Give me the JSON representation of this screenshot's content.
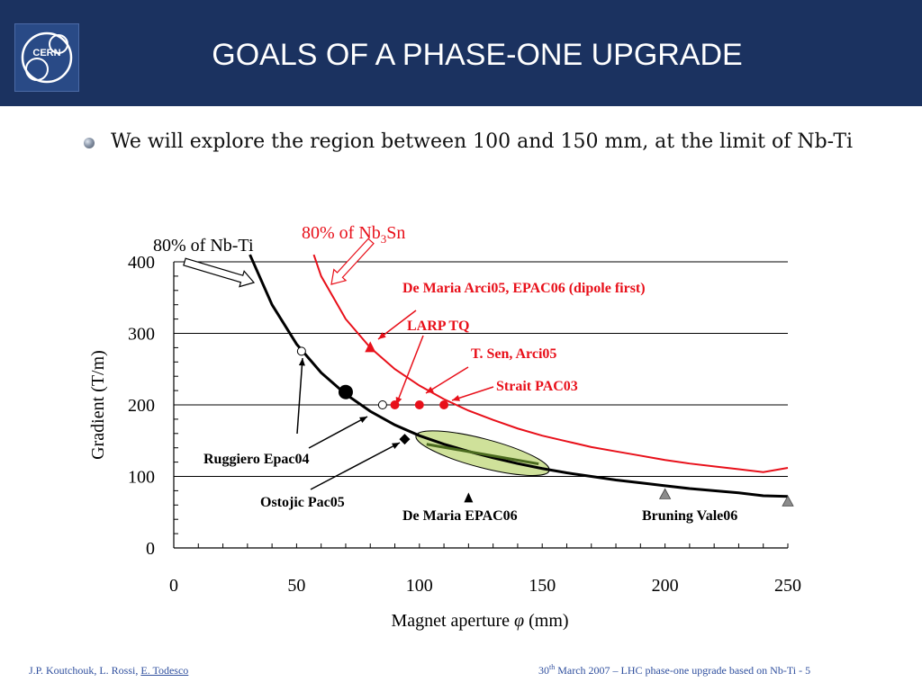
{
  "header": {
    "logo_text": "CERN",
    "title": "GOALS OF A PHASE-ONE UPGRADE"
  },
  "bullet": {
    "text": "We will explore the region between 100 and 150 mm, at the limit of Nb-Ti"
  },
  "chart_data": {
    "type": "line",
    "xlabel_prefix": "Magnet aperture ",
    "xlabel_symbol": "φ",
    "xlabel_suffix": " (mm)",
    "ylabel": "Gradient (T/m)",
    "xlim": [
      0,
      250
    ],
    "ylim": [
      0,
      400
    ],
    "x_ticks": [
      0,
      50,
      100,
      150,
      200,
      250
    ],
    "y_ticks": [
      0,
      100,
      200,
      300,
      400
    ],
    "grid": "horizontal",
    "colors": {
      "nbti": "#000000",
      "nb3sn": "#e8101a",
      "ellipse_fill": "#cfe19a",
      "ellipse_line": "#4a6a1e",
      "gray_marker": "#8c8c8c"
    },
    "series": [
      {
        "name": "80% of Nb-Ti",
        "x": [
          31,
          40,
          50,
          60,
          70,
          80,
          90,
          100,
          110,
          120,
          130,
          140,
          150,
          160,
          170,
          180,
          190,
          200,
          210,
          220,
          230,
          240,
          250
        ],
        "y": [
          410,
          340,
          285,
          245,
          215,
          191,
          172,
          157,
          145,
          135,
          126,
          118,
          111,
          105,
          100,
          95,
          91,
          87,
          83,
          80,
          77,
          73,
          72
        ]
      },
      {
        "name": "80% of Nb3Sn",
        "x": [
          57,
          60,
          70,
          80,
          90,
          100,
          110,
          120,
          130,
          140,
          150,
          160,
          170,
          180,
          190,
          200,
          210,
          220,
          230,
          240,
          250
        ],
        "y": [
          410,
          380,
          320,
          280,
          250,
          227,
          208,
          192,
          179,
          167,
          157,
          149,
          141,
          135,
          129,
          123,
          118,
          114,
          110,
          106,
          112
        ]
      }
    ],
    "points": [
      {
        "x": 52,
        "y": 275,
        "marker": "open-circle"
      },
      {
        "x": 70,
        "y": 218,
        "marker": "big-dot"
      },
      {
        "x": 85,
        "y": 200,
        "marker": "open-circle"
      },
      {
        "x": 90,
        "y": 200,
        "marker": "red-dot"
      },
      {
        "x": 100,
        "y": 200,
        "marker": "red-dot"
      },
      {
        "x": 110,
        "y": 200,
        "marker": "red-dot"
      },
      {
        "x": 80,
        "y": 280,
        "marker": "red-triangle"
      },
      {
        "x": 94,
        "y": 152,
        "marker": "diamond"
      },
      {
        "x": 120,
        "y": 70,
        "marker": "black-triangle"
      },
      {
        "x": 200,
        "y": 75,
        "marker": "gray-triangle"
      },
      {
        "x": 250,
        "y": 65,
        "marker": "gray-triangle"
      }
    ],
    "ellipse": {
      "x_range": [
        100,
        150
      ],
      "y_range": [
        110,
        155
      ]
    },
    "labels": {
      "nbti_curve_label": "80% of Nb-Ti",
      "nb3sn_curve_label_prefix": "80% of Nb",
      "nb3sn_curve_label_sub": "3",
      "nb3sn_curve_label_suffix": "Sn",
      "de_maria_arci": "De Maria Arci05, EPAC06 (dipole first)",
      "larp_tq": "LARP TQ",
      "t_sen": "T. Sen, Arci05",
      "strait": "Strait PAC03",
      "ruggiero": "Ruggiero Epac04",
      "ostojic": "Ostojic Pac05",
      "de_maria_epac": "De Maria EPAC06",
      "bruning": "Bruning Vale06"
    }
  },
  "footer": {
    "authors_prefix": "J.P. Koutchouk, L. Rossi, ",
    "authors_underlined": "E. Todesco",
    "date_day": "30",
    "date_sup": "th",
    "date_rest": " March 2007 – LHC phase-one upgrade based on Nb-Ti  - 5"
  }
}
